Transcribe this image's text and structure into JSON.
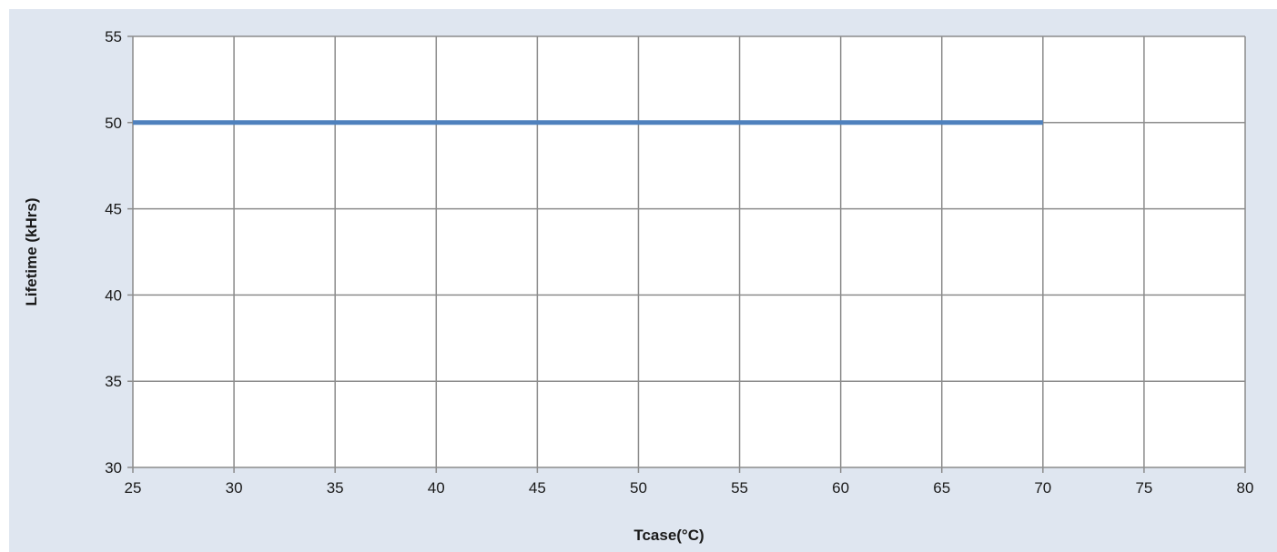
{
  "chart_data": {
    "type": "line",
    "title": "",
    "xlabel": "Tcase(°C)",
    "ylabel": "Lifetime (kHrs)",
    "xlim": [
      25,
      80
    ],
    "ylim": [
      30,
      55
    ],
    "x_ticks": [
      25,
      30,
      35,
      40,
      45,
      50,
      55,
      60,
      65,
      70,
      75,
      80
    ],
    "y_ticks": [
      30,
      35,
      40,
      45,
      50,
      55
    ],
    "grid": true,
    "legend": "none",
    "series": [
      {
        "x": [
          25,
          70
        ],
        "y": [
          50,
          50
        ],
        "color": "#4f81bd"
      }
    ],
    "colors": {
      "background": "#dfe6f0",
      "plot_area": "#ffffff",
      "grid": "#8c8c8c",
      "line": "#4f81bd"
    }
  }
}
